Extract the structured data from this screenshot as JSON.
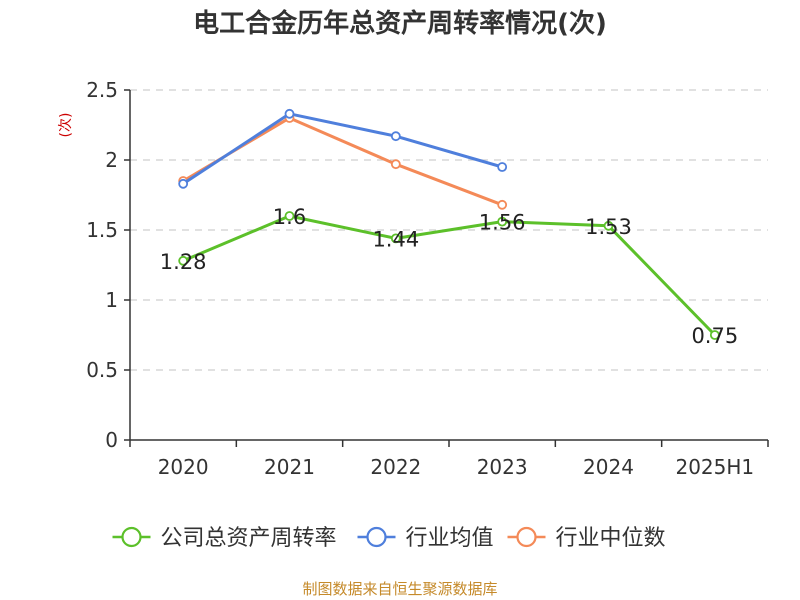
{
  "chart_data": {
    "type": "line",
    "title": "电工合金历年总资产周转率情况(次)",
    "ylabel": "(次)",
    "xlabel": "",
    "categories": [
      "2020",
      "2021",
      "2022",
      "2023",
      "2024",
      "2025H1"
    ],
    "ylim": [
      0,
      2.5
    ],
    "yticks": [
      "0",
      "0.5",
      "1",
      "1.5",
      "2",
      "2.5"
    ],
    "grid": true,
    "legend_position": "bottom",
    "series": [
      {
        "name": "公司总资产周转率",
        "color": "#5cc02a",
        "values": [
          1.28,
          1.6,
          1.44,
          1.56,
          1.53,
          0.75
        ],
        "labels": [
          "1.28",
          "1.6",
          "1.44",
          "1.56",
          "1.53",
          "0.75"
        ]
      },
      {
        "name": "行业均值",
        "color": "#4f7fdc",
        "values": [
          1.83,
          2.33,
          2.17,
          1.95,
          null,
          null
        ]
      },
      {
        "name": "行业中位数",
        "color": "#f48a58",
        "values": [
          1.85,
          2.3,
          1.97,
          1.68,
          null,
          null
        ]
      }
    ],
    "colors": {
      "unit": "#cc0000",
      "source": "#c58a2a"
    },
    "source": "制图数据来自恒生聚源数据库"
  }
}
